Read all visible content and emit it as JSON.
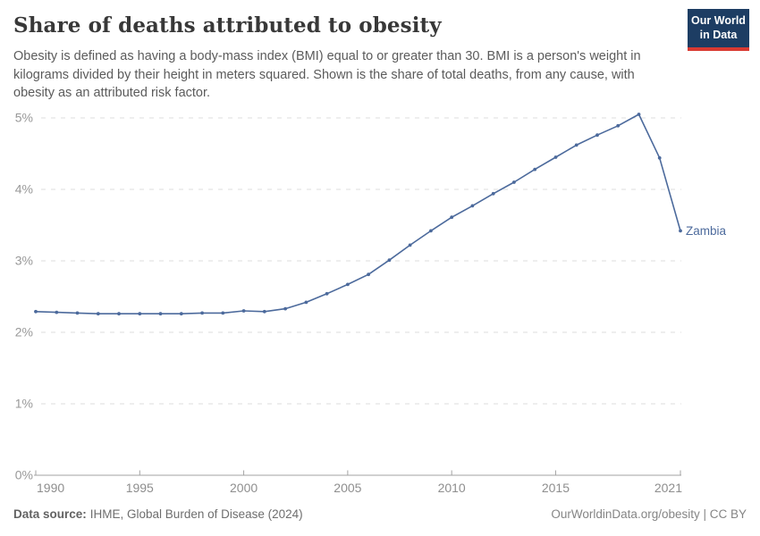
{
  "header": {
    "title": "Share of deaths attributed to obesity",
    "subtitle": "Obesity is defined as having a body-mass index (BMI) equal to or greater than 30. BMI is a person's weight in kilograms divided by their height in meters squared. Shown is the share of total deaths, from any cause, with obesity as an attributed risk factor.",
    "logo": {
      "line1": "Our World",
      "line2": "in Data"
    }
  },
  "chart_data": {
    "type": "line",
    "title": "Share of deaths attributed to obesity",
    "x": [
      1990,
      1991,
      1992,
      1993,
      1994,
      1995,
      1996,
      1997,
      1998,
      1999,
      2000,
      2001,
      2002,
      2003,
      2004,
      2005,
      2006,
      2007,
      2008,
      2009,
      2010,
      2011,
      2012,
      2013,
      2014,
      2015,
      2016,
      2017,
      2018,
      2019,
      2020,
      2021
    ],
    "series": [
      {
        "name": "Zambia",
        "color": "#4c6a9c",
        "values": [
          2.29,
          2.28,
          2.27,
          2.26,
          2.26,
          2.26,
          2.26,
          2.26,
          2.27,
          2.27,
          2.3,
          2.29,
          2.33,
          2.42,
          2.54,
          2.67,
          2.81,
          3.01,
          3.22,
          3.42,
          3.61,
          3.77,
          3.94,
          4.1,
          4.28,
          4.45,
          4.62,
          4.76,
          4.89,
          5.05,
          4.44,
          3.42
        ]
      }
    ],
    "xlabel": "",
    "ylabel": "",
    "xlim": [
      1990,
      2021
    ],
    "ylim": [
      0,
      5
    ],
    "x_ticks": [
      1990,
      1995,
      2000,
      2005,
      2010,
      2015,
      2021
    ],
    "y_ticks": [
      "0%",
      "1%",
      "2%",
      "3%",
      "4%",
      "5%"
    ],
    "grid": "horizontal-dashed",
    "legend_position": "end-of-line-label"
  },
  "footer": {
    "source_label": "Data source:",
    "source_text": "IHME, Global Burden of Disease (2024)",
    "attribution": "OurWorldinData.org/obesity | CC BY"
  },
  "colors": {
    "line": "#4c6a9c",
    "title_text": "#383838",
    "subtitle_text": "#5b5b5b",
    "y_tick_text": "#999999",
    "x_tick_text": "#8e8e8e",
    "gridline": "#dedede",
    "axis_line": "#a3a3a3",
    "logo_bg": "#1d3d63",
    "logo_stripe": "#d93a32",
    "background": "#ffffff"
  }
}
